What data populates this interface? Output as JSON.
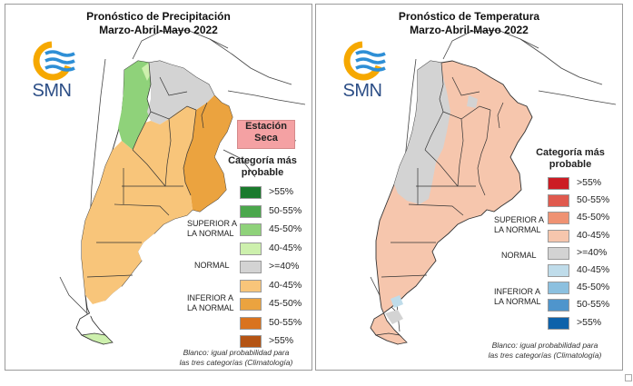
{
  "left_panel": {
    "title_line1": "Pronóstico de Precipitación",
    "title_line2": "Marzo-Abril-Mayo 2022",
    "logo_text": "SMN",
    "dry_line1": "Estación",
    "dry_line2": "Seca",
    "legend_title_line1": "Categoría más",
    "legend_title_line2": "probable",
    "group_upper_line1": "SUPERIOR A",
    "group_upper_line2": "LA NORMAL",
    "group_normal": "NORMAL",
    "group_lower_line1": "INFERIOR A",
    "group_lower_line2": "LA NORMAL",
    "categories": [
      {
        "label": ">55%",
        "color": "#1a7a2c"
      },
      {
        "label": "50-55%",
        "color": "#4ba74c"
      },
      {
        "label": "45-50%",
        "color": "#8fd27a"
      },
      {
        "label": "40-45%",
        "color": "#cdf0ad"
      },
      {
        "label": ">=40%",
        "color": "#d3d3d3"
      },
      {
        "label": "40-45%",
        "color": "#f8c57a"
      },
      {
        "label": "45-50%",
        "color": "#eba33f"
      },
      {
        "label": "50-55%",
        "color": "#d9731e"
      },
      {
        "label": ">55%",
        "color": "#b45414"
      }
    ],
    "footnote_line1": "Blanco: igual probabilidad para",
    "footnote_line2": "las tres categorías (Climatología)"
  },
  "right_panel": {
    "title_line1": "Pronóstico de Temperatura",
    "title_line2": "Marzo-Abril-Mayo 2022",
    "logo_text": "SMN",
    "legend_title_line1": "Categoría más",
    "legend_title_line2": "probable",
    "group_upper_line1": "SUPERIOR A",
    "group_upper_line2": "LA NORMAL",
    "group_normal": "NORMAL",
    "group_lower_line1": "INFERIOR A",
    "group_lower_line2": "LA NORMAL",
    "categories": [
      {
        "label": ">55%",
        "color": "#cc1c24"
      },
      {
        "label": "50-55%",
        "color": "#e05a4e"
      },
      {
        "label": "45-50%",
        "color": "#ef9273"
      },
      {
        "label": "40-45%",
        "color": "#f6c6ad"
      },
      {
        "label": ">=40%",
        "color": "#d3d3d3"
      },
      {
        "label": "40-45%",
        "color": "#bfdcea"
      },
      {
        "label": "45-50%",
        "color": "#8cc0df"
      },
      {
        "label": "50-55%",
        "color": "#4f95cc"
      },
      {
        "label": ">55%",
        "color": "#0e62aa"
      }
    ],
    "footnote_line1": "Blanco: igual probabilidad para",
    "footnote_line2": "las tres categorías (Climatología)"
  },
  "logo_colors": {
    "sun": "#f6a800",
    "waves": "#2e8fd6"
  }
}
